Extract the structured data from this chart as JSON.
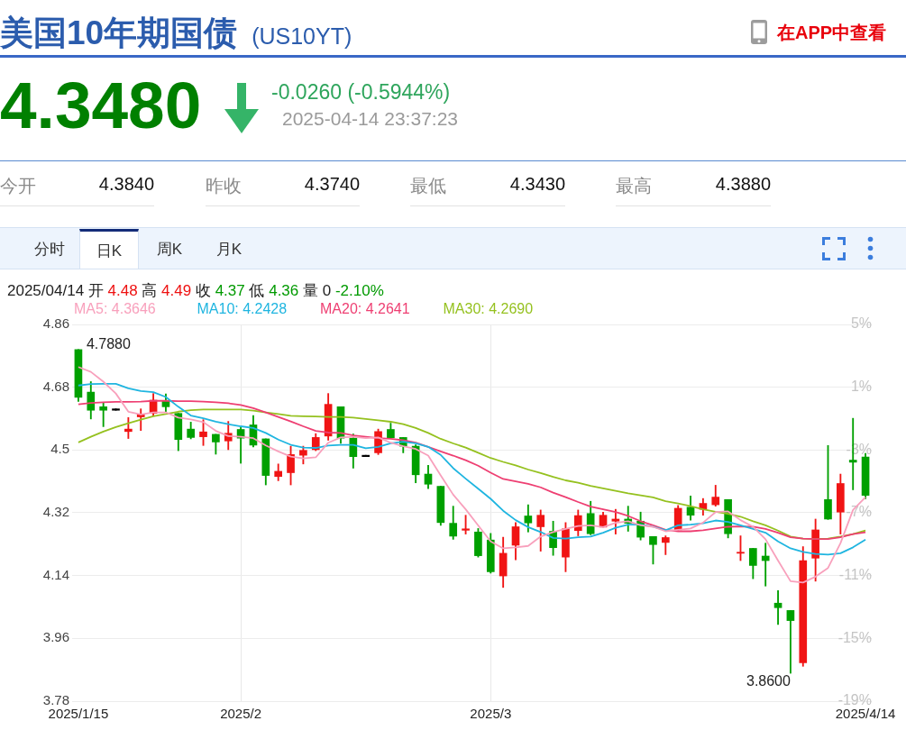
{
  "chart_data": {
    "type": "candlestick",
    "title": "美国10年期国债",
    "subtitle": "(US10YT)",
    "annotations": [
      "在APP中查看",
      "4.3480",
      "-0.0260 (-0.5944%)",
      "2025-04-14 23:37:23",
      "今开",
      "4.3840",
      "昨收",
      "4.3740",
      "最低",
      "4.3430",
      "最高",
      "4.3880",
      "分时",
      "日K",
      "周K",
      "月K",
      "2025/04/14 开 4.48 高 4.49 收 4.37 低 4.36 量 0 -2.10%",
      "4.7880",
      "3.8600"
    ],
    "categories": [
      "2025/1/15",
      null,
      null,
      null,
      null,
      null,
      null,
      null,
      null,
      null,
      null,
      null,
      null,
      "2025/2",
      null,
      null,
      null,
      null,
      null,
      null,
      null,
      null,
      null,
      null,
      null,
      null,
      null,
      null,
      null,
      null,
      null,
      null,
      null,
      "2025/3",
      null,
      null,
      null,
      null,
      null,
      null,
      null,
      null,
      null,
      null,
      null,
      null,
      null,
      null,
      null,
      null,
      null,
      null,
      null,
      null,
      null,
      null,
      null,
      null,
      null,
      null,
      null,
      null,
      null,
      "2025/4/14"
    ],
    "ohlc": [
      [
        4.788,
        4.788,
        4.639,
        4.651
      ],
      [
        4.666,
        4.696,
        4.589,
        4.614
      ],
      [
        4.624,
        4.635,
        4.567,
        4.614
      ],
      [
        4.618,
        4.618,
        4.614,
        4.614
      ],
      [
        4.553,
        4.593,
        4.533,
        4.56
      ],
      [
        4.595,
        4.618,
        4.556,
        4.603
      ],
      [
        4.605,
        4.662,
        4.597,
        4.643
      ],
      [
        4.64,
        4.661,
        4.61,
        4.624
      ],
      [
        4.605,
        4.605,
        4.498,
        4.53
      ],
      [
        4.56,
        4.58,
        4.532,
        4.536
      ],
      [
        4.538,
        4.587,
        4.513,
        4.552
      ],
      [
        4.545,
        4.545,
        4.488,
        4.523
      ],
      [
        4.526,
        4.582,
        4.501,
        4.548
      ],
      [
        4.559,
        4.566,
        4.462,
        4.534
      ],
      [
        4.572,
        4.599,
        4.509,
        4.514
      ],
      [
        4.532,
        4.532,
        4.4,
        4.427
      ],
      [
        4.424,
        4.46,
        4.412,
        4.439
      ],
      [
        4.435,
        4.511,
        4.4,
        4.487
      ],
      [
        4.485,
        4.511,
        4.46,
        4.499
      ],
      [
        4.501,
        4.547,
        4.498,
        4.536
      ],
      [
        4.54,
        4.662,
        4.528,
        4.631
      ],
      [
        4.624,
        4.624,
        4.519,
        4.534
      ],
      [
        4.534,
        4.546,
        4.448,
        4.481
      ],
      [
        4.485,
        4.485,
        4.481,
        4.481
      ],
      [
        4.492,
        4.56,
        4.487,
        4.553
      ],
      [
        4.559,
        4.577,
        4.535,
        4.535
      ],
      [
        4.536,
        4.536,
        4.492,
        4.511
      ],
      [
        4.511,
        4.515,
        4.406,
        4.429
      ],
      [
        4.431,
        4.456,
        4.389,
        4.402
      ],
      [
        4.396,
        4.396,
        4.284,
        4.292
      ],
      [
        4.29,
        4.339,
        4.244,
        4.253
      ],
      [
        4.27,
        4.313,
        4.259,
        4.274
      ],
      [
        4.265,
        4.275,
        4.193,
        4.197
      ],
      [
        4.242,
        4.261,
        4.147,
        4.151
      ],
      [
        4.139,
        4.25,
        4.106,
        4.204
      ],
      [
        4.227,
        4.292,
        4.185,
        4.28
      ],
      [
        4.311,
        4.343,
        4.265,
        4.291
      ],
      [
        4.28,
        4.328,
        4.21,
        4.313
      ],
      [
        4.267,
        4.296,
        4.198,
        4.22
      ],
      [
        4.193,
        4.292,
        4.151,
        4.274
      ],
      [
        4.269,
        4.328,
        4.254,
        4.312
      ],
      [
        4.318,
        4.353,
        4.257,
        4.26
      ],
      [
        4.279,
        4.322,
        4.279,
        4.313
      ],
      [
        4.296,
        4.33,
        4.259,
        4.302
      ],
      [
        4.302,
        4.339,
        4.267,
        4.29
      ],
      [
        4.296,
        4.322,
        4.242,
        4.25
      ],
      [
        4.252,
        4.252,
        4.173,
        4.229
      ],
      [
        4.235,
        4.254,
        4.2,
        4.249
      ],
      [
        4.271,
        4.341,
        4.269,
        4.333
      ],
      [
        4.336,
        4.368,
        4.299,
        4.313
      ],
      [
        4.33,
        4.361,
        4.313,
        4.347
      ],
      [
        4.343,
        4.399,
        4.339,
        4.365
      ],
      [
        4.358,
        4.358,
        4.248,
        4.26
      ],
      [
        4.204,
        4.254,
        4.183,
        4.207
      ],
      [
        4.218,
        4.218,
        4.131,
        4.169
      ],
      [
        4.196,
        4.233,
        4.11,
        4.183
      ],
      [
        4.061,
        4.097,
        4.0,
        4.048
      ],
      [
        4.04,
        4.04,
        3.86,
        4.011
      ],
      [
        3.89,
        4.223,
        3.88,
        4.183
      ],
      [
        4.19,
        4.302,
        4.124,
        4.271
      ],
      [
        4.358,
        4.513,
        4.301,
        4.302
      ],
      [
        4.322,
        4.431,
        4.259,
        4.404
      ],
      [
        4.471,
        4.591,
        4.386,
        4.465
      ],
      [
        4.48,
        4.49,
        4.36,
        4.37
      ]
    ],
    "colors": [
      "#00a000",
      "#00a000",
      "#00a000",
      "#000000",
      "#f01414",
      "#f01414",
      "#f01414",
      "#00a000",
      "#00a000",
      "#00a000",
      "#f01414",
      "#00a000",
      "#f01414",
      "#00a000",
      "#00a000",
      "#00a000",
      "#f01414",
      "#f01414",
      "#f01414",
      "#f01414",
      "#f01414",
      "#00a000",
      "#00a000",
      "#000000",
      "#f01414",
      "#00a000",
      "#00a000",
      "#00a000",
      "#00a000",
      "#00a000",
      "#00a000",
      "#f01414",
      "#00a000",
      "#00a000",
      "#f01414",
      "#f01414",
      "#00a000",
      "#f01414",
      "#00a000",
      "#f01414",
      "#f01414",
      "#00a000",
      "#f01414",
      "#f01414",
      "#00a000",
      "#00a000",
      "#00a000",
      "#f01414",
      "#f01414",
      "#00a000",
      "#f01414",
      "#f01414",
      "#00a000",
      "#f01414",
      "#00a000",
      "#00a000",
      "#00a000",
      "#00a000",
      "#f01414",
      "#f01414",
      "#00a000",
      "#f01414",
      "#00a000",
      "#00a000"
    ],
    "series": [
      {
        "name": "MA5: 4.3646",
        "type": "line",
        "color": "#f8a0bc",
        "values": [
          4.738,
          4.724,
          4.696,
          4.662,
          4.61,
          4.602,
          4.608,
          4.608,
          4.593,
          4.588,
          4.58,
          4.555,
          4.54,
          4.538,
          4.534,
          4.513,
          4.496,
          4.481,
          4.476,
          4.479,
          4.521,
          4.536,
          4.538,
          4.534,
          4.536,
          4.521,
          4.511,
          4.503,
          4.484,
          4.427,
          4.372,
          4.33,
          4.284,
          4.238,
          4.218,
          4.221,
          4.225,
          4.252,
          4.265,
          4.274,
          4.282,
          4.284,
          4.279,
          4.291,
          4.296,
          4.284,
          4.28,
          4.267,
          4.271,
          4.275,
          4.292,
          4.322,
          4.324,
          4.299,
          4.28,
          4.244,
          4.183,
          4.124,
          4.12,
          4.137,
          4.162,
          4.233,
          4.328,
          4.365
        ]
      },
      {
        "name": "MA10: 4.2428",
        "type": "line",
        "color": "#1fb5e0",
        "values": [
          4.685,
          4.689,
          4.69,
          4.69,
          4.677,
          4.669,
          4.666,
          4.652,
          4.624,
          4.599,
          4.591,
          4.581,
          4.574,
          4.568,
          4.563,
          4.549,
          4.53,
          4.515,
          4.507,
          4.506,
          4.513,
          4.515,
          4.515,
          4.505,
          4.509,
          4.519,
          4.524,
          4.519,
          4.509,
          4.486,
          4.448,
          4.418,
          4.389,
          4.36,
          4.326,
          4.299,
          4.279,
          4.265,
          4.248,
          4.246,
          4.25,
          4.252,
          4.263,
          4.277,
          4.286,
          4.286,
          4.28,
          4.27,
          4.284,
          4.286,
          4.29,
          4.298,
          4.294,
          4.284,
          4.274,
          4.263,
          4.238,
          4.218,
          4.208,
          4.202,
          4.2,
          4.204,
          4.221,
          4.243
        ]
      },
      {
        "name": "MA20: 4.2641",
        "type": "line",
        "color": "#ee3f72",
        "values": [
          4.631,
          4.635,
          4.637,
          4.638,
          4.638,
          4.639,
          4.641,
          4.641,
          4.64,
          4.64,
          4.639,
          4.637,
          4.634,
          4.629,
          4.62,
          4.608,
          4.595,
          4.582,
          4.568,
          4.555,
          4.55,
          4.549,
          4.542,
          4.538,
          4.534,
          4.532,
          4.528,
          4.521,
          4.509,
          4.496,
          4.484,
          4.471,
          4.455,
          4.435,
          4.417,
          4.41,
          4.403,
          4.393,
          4.378,
          4.365,
          4.351,
          4.338,
          4.33,
          4.322,
          4.311,
          4.296,
          4.284,
          4.271,
          4.267,
          4.267,
          4.27,
          4.275,
          4.28,
          4.281,
          4.28,
          4.274,
          4.263,
          4.25,
          4.246,
          4.245,
          4.245,
          4.25,
          4.259,
          4.264
        ]
      },
      {
        "name": "MA30: 4.2690",
        "type": "line",
        "color": "#95c11f",
        "values": [
          4.522,
          4.538,
          4.553,
          4.566,
          4.577,
          4.587,
          4.597,
          4.603,
          4.61,
          4.614,
          4.616,
          4.616,
          4.616,
          4.616,
          4.613,
          4.608,
          4.603,
          4.598,
          4.597,
          4.596,
          4.595,
          4.595,
          4.593,
          4.589,
          4.585,
          4.581,
          4.574,
          4.563,
          4.549,
          4.532,
          4.519,
          4.507,
          4.492,
          4.477,
          4.466,
          4.456,
          4.444,
          4.434,
          4.423,
          4.413,
          4.406,
          4.397,
          4.39,
          4.383,
          4.376,
          4.37,
          4.364,
          4.353,
          4.347,
          4.339,
          4.33,
          4.323,
          4.317,
          4.309,
          4.296,
          4.284,
          4.269,
          4.252,
          4.246,
          4.245,
          4.246,
          4.252,
          4.259,
          4.269
        ]
      }
    ],
    "ylim": [
      3.78,
      4.86
    ],
    "yticks": [
      3.78,
      3.96,
      4.14,
      4.32,
      4.5,
      4.68,
      4.86
    ],
    "y2lim": [
      -19,
      5
    ],
    "y2ticks": [
      {
        "value": -19,
        "label": "-19%"
      },
      {
        "value": -15,
        "label": "-15%"
      },
      {
        "value": -11,
        "label": "-11%"
      },
      {
        "value": -7,
        "label": "-7%"
      },
      {
        "value": -3,
        "label": "-3%"
      },
      {
        "value": 1,
        "label": "1%"
      },
      {
        "value": 5,
        "label": "5%"
      }
    ],
    "grid": true,
    "legend": "top"
  }
}
